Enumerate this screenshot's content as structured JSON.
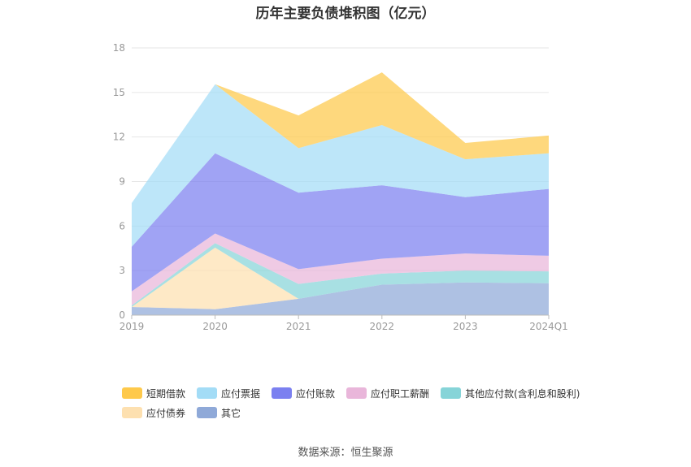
{
  "chart_data": {
    "type": "area",
    "stacked": true,
    "title": "历年主要负债堆积图（亿元）",
    "categories": [
      "2019",
      "2020",
      "2021",
      "2022",
      "2023",
      "2024Q1"
    ],
    "ylim": [
      0,
      18
    ],
    "yticks": [
      0,
      3,
      6,
      9,
      12,
      15,
      18
    ],
    "grid": true,
    "legend_position": "bottom",
    "series": [
      {
        "name": "其它",
        "color": "#8fa9d8",
        "values": [
          0.55,
          0.4,
          1.1,
          2.05,
          2.2,
          2.15
        ]
      },
      {
        "name": "应付债券",
        "color": "#fde0b0",
        "values": [
          0.0,
          4.15,
          0.0,
          0.0,
          0.0,
          0.0
        ]
      },
      {
        "name": "其他应付款(含利息和股利)",
        "color": "#86d4d8",
        "values": [
          0.1,
          0.3,
          1.0,
          0.75,
          0.8,
          0.8
        ]
      },
      {
        "name": "应付职工薪酬",
        "color": "#e9b6da",
        "values": [
          0.95,
          0.65,
          1.0,
          1.0,
          1.15,
          1.05
        ]
      },
      {
        "name": "应付账款",
        "color": "#7b80f0",
        "values": [
          3.0,
          5.4,
          5.15,
          4.95,
          3.8,
          4.5
        ]
      },
      {
        "name": "应付票据",
        "color": "#a3dcf6",
        "values": [
          2.95,
          4.65,
          3.0,
          4.05,
          2.55,
          2.4
        ]
      },
      {
        "name": "短期借款",
        "color": "#fec94b",
        "values": [
          0.0,
          0.0,
          2.2,
          3.55,
          1.1,
          1.2
        ]
      }
    ]
  },
  "legend": {
    "row1": [
      "短期借款",
      "应付票据",
      "应付账款",
      "应付职工薪酬",
      "其他应付款(含利息和股利)"
    ],
    "row2": [
      "应付债券",
      "其它"
    ],
    "colors": {
      "短期借款": "#fec94b",
      "应付票据": "#a3dcf6",
      "应付账款": "#7b80f0",
      "应付职工薪酬": "#e9b6da",
      "其他应付款(含利息和股利)": "#86d4d8",
      "应付债券": "#fde0b0",
      "其它": "#8fa9d8"
    }
  },
  "source": "数据来源：恒生聚源"
}
